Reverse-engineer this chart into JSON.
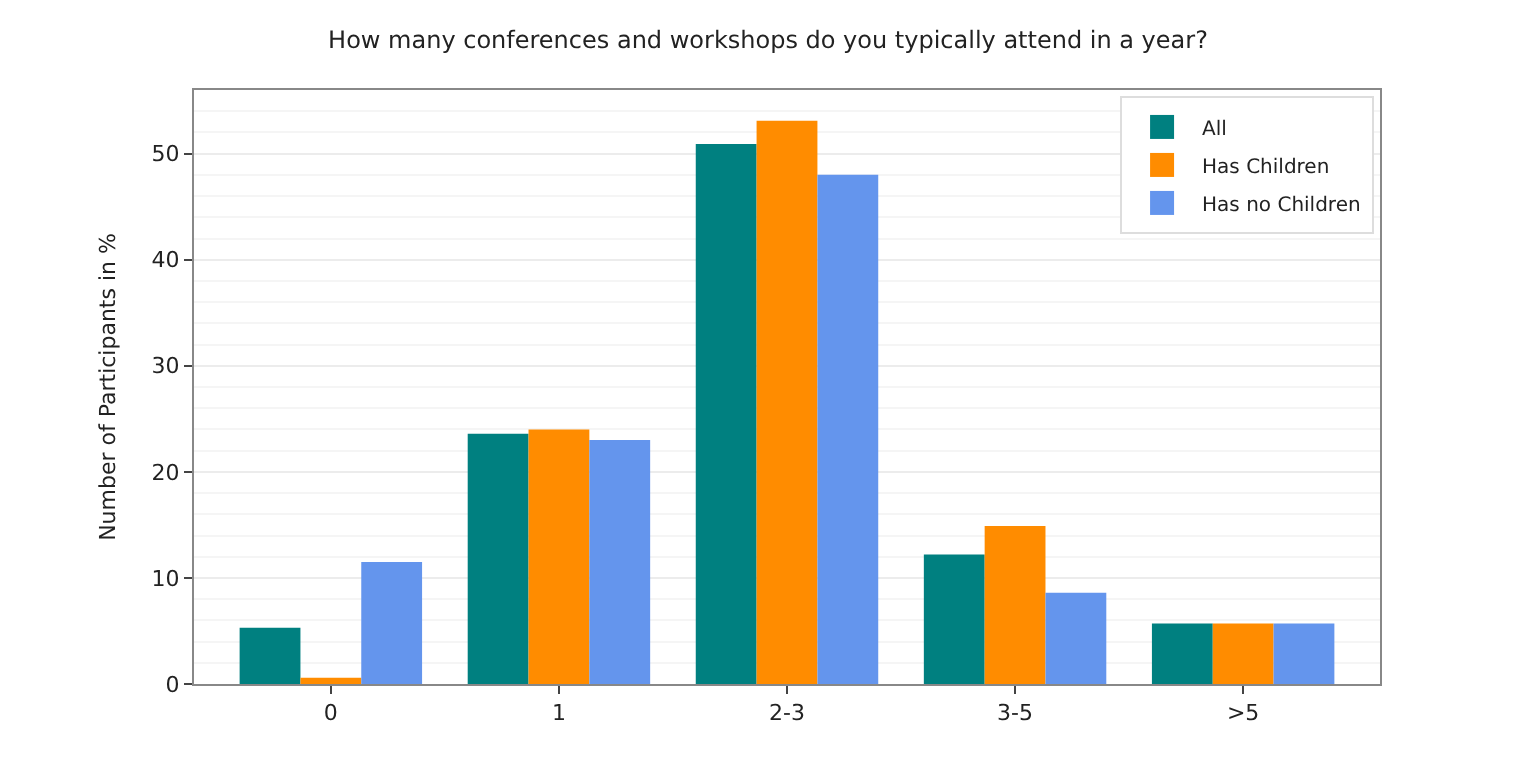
{
  "chart_data": {
    "type": "bar",
    "title": "How many conferences and workshops do you typically attend in a year?",
    "ylabel": "Number of Participants in %",
    "categories": [
      "0",
      "1",
      "2-3",
      "3-5",
      ">5"
    ],
    "series": [
      {
        "name": "All",
        "color": "#008080",
        "values": [
          5.3,
          23.6,
          50.9,
          12.2,
          5.7
        ]
      },
      {
        "name": "Has Children",
        "color": "#ff8c00",
        "values": [
          0.6,
          24.0,
          53.1,
          14.9,
          5.7
        ]
      },
      {
        "name": "Has no Children",
        "color": "#6495ed",
        "values": [
          11.5,
          23.0,
          48.0,
          8.6,
          5.7
        ]
      }
    ],
    "ylim": [
      0,
      56
    ],
    "yticks": [
      0,
      10,
      20,
      30,
      40,
      50
    ],
    "grid": "y",
    "legend": "top right"
  }
}
